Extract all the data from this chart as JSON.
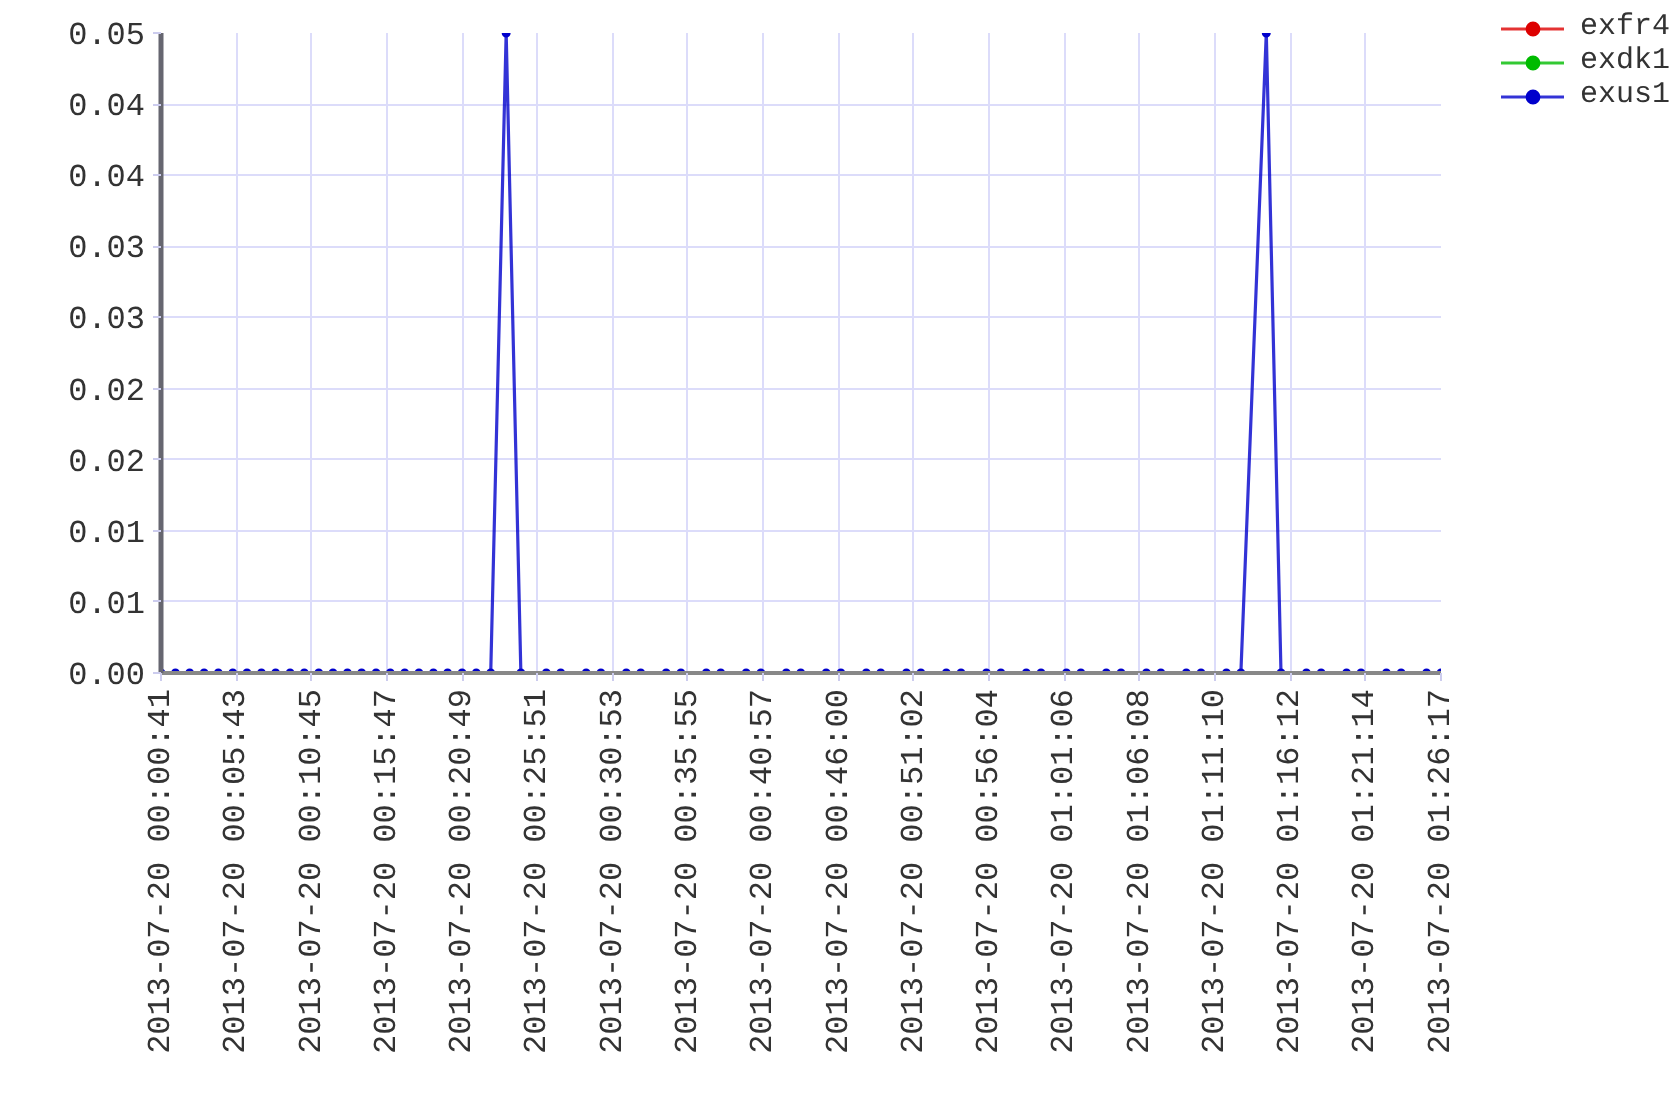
{
  "chart_data": {
    "type": "line",
    "legend": "right",
    "grid": true,
    "marker": "circle",
    "line_style": "solid",
    "xlim": [
      "2013-07-20T00:00:41",
      "2013-07-20T01:26:17"
    ],
    "xticks": [
      {
        "value": "2013-07-20T00:00:41",
        "label": "2013-07-20 00:00:41"
      },
      {
        "value": "2013-07-20T00:05:43",
        "label": "2013-07-20 00:05:43"
      },
      {
        "value": "2013-07-20T00:10:45",
        "label": "2013-07-20 00:10:45"
      },
      {
        "value": "2013-07-20T00:15:47",
        "label": "2013-07-20 00:15:47"
      },
      {
        "value": "2013-07-20T00:20:49",
        "label": "2013-07-20 00:20:49"
      },
      {
        "value": "2013-07-20T00:25:51",
        "label": "2013-07-20 00:25:51"
      },
      {
        "value": "2013-07-20T00:30:53",
        "label": "2013-07-20 00:30:53"
      },
      {
        "value": "2013-07-20T00:35:55",
        "label": "2013-07-20 00:35:55"
      },
      {
        "value": "2013-07-20T00:40:57",
        "label": "2013-07-20 00:40:57"
      },
      {
        "value": "2013-07-20T00:46:00",
        "label": "2013-07-20 00:46:00"
      },
      {
        "value": "2013-07-20T00:51:02",
        "label": "2013-07-20 00:51:02"
      },
      {
        "value": "2013-07-20T00:56:04",
        "label": "2013-07-20 00:56:04"
      },
      {
        "value": "2013-07-20T01:01:06",
        "label": "2013-07-20 01:01:06"
      },
      {
        "value": "2013-07-20T01:06:08",
        "label": "2013-07-20 01:06:08"
      },
      {
        "value": "2013-07-20T01:11:10",
        "label": "2013-07-20 01:11:10"
      },
      {
        "value": "2013-07-20T01:16:12",
        "label": "2013-07-20 01:16:12"
      },
      {
        "value": "2013-07-20T01:21:14",
        "label": "2013-07-20 01:21:14"
      },
      {
        "value": "2013-07-20T01:26:17",
        "label": "2013-07-20 01:26:17"
      }
    ],
    "ylim": [
      0,
      0.05
    ],
    "yticks": [
      {
        "value": 0,
        "label": "0.00"
      },
      {
        "value": 0.00556,
        "label": "0.01"
      },
      {
        "value": 0.01111,
        "label": "0.01"
      },
      {
        "value": 0.01667,
        "label": "0.02"
      },
      {
        "value": 0.02222,
        "label": "0.02"
      },
      {
        "value": 0.02778,
        "label": "0.03"
      },
      {
        "value": 0.03333,
        "label": "0.03"
      },
      {
        "value": 0.03889,
        "label": "0.04"
      },
      {
        "value": 0.04444,
        "label": "0.04"
      },
      0.05
    ],
    "x": [
      "2013-07-20T00:00:41",
      "2013-07-20T00:01:39",
      "2013-07-20T00:02:36",
      "2013-07-20T00:03:34",
      "2013-07-20T00:04:31",
      "2013-07-20T00:05:29",
      "2013-07-20T00:06:26",
      "2013-07-20T00:07:24",
      "2013-07-20T00:08:21",
      "2013-07-20T00:09:19",
      "2013-07-20T00:10:16",
      "2013-07-20T00:11:14",
      "2013-07-20T00:12:11",
      "2013-07-20T00:13:09",
      "2013-07-20T00:14:06",
      "2013-07-20T00:15:04",
      "2013-07-20T00:16:01",
      "2013-07-20T00:16:59",
      "2013-07-20T00:17:56",
      "2013-07-20T00:18:54",
      "2013-07-20T00:19:51",
      "2013-07-20T00:20:49",
      "2013-07-20T00:21:46",
      "2013-07-20T00:22:44",
      "2013-07-20T00:23:46",
      "2013-07-20T00:24:45",
      "2013-07-20T00:26:27",
      "2013-07-20T00:27:25",
      "2013-07-20T00:29:07",
      "2013-07-20T00:30:06",
      "2013-07-20T00:31:48",
      "2013-07-20T00:32:46",
      "2013-07-20T00:34:28",
      "2013-07-20T00:35:27",
      "2013-07-20T00:37:09",
      "2013-07-20T00:38:07",
      "2013-07-20T00:39:49",
      "2013-07-20T00:40:48",
      "2013-07-20T00:42:30",
      "2013-07-20T00:43:28",
      "2013-07-20T00:45:10",
      "2013-07-20T00:46:09",
      "2013-07-20T00:47:51",
      "2013-07-20T00:48:49",
      "2013-07-20T00:50:32",
      "2013-07-20T00:51:30",
      "2013-07-20T00:53:12",
      "2013-07-20T00:54:11",
      "2013-07-20T00:55:53",
      "2013-07-20T00:56:51",
      "2013-07-20T00:58:33",
      "2013-07-20T00:59:32",
      "2013-07-20T01:01:14",
      "2013-07-20T01:02:12",
      "2013-07-20T01:03:54",
      "2013-07-20T01:04:53",
      "2013-07-20T01:06:35",
      "2013-07-20T01:07:33",
      "2013-07-20T01:09:15",
      "2013-07-20T01:10:14",
      "2013-07-20T01:11:56",
      "2013-07-20T01:12:54",
      "2013-07-20T01:14:36",
      "2013-07-20T01:15:35",
      "2013-07-20T01:17:17",
      "2013-07-20T01:18:16",
      "2013-07-20T01:19:58",
      "2013-07-20T01:20:56",
      "2013-07-20T01:22:38",
      "2013-07-20T01:23:37",
      "2013-07-20T01:25:19",
      "2013-07-20T01:26:17"
    ],
    "series": [
      {
        "name": "exfr4",
        "color": "#dd0000",
        "values": [
          null,
          null,
          null,
          null,
          null,
          null,
          null,
          null,
          null,
          null,
          null,
          null,
          null,
          null,
          null,
          null,
          null,
          null,
          null,
          null,
          null,
          null,
          null,
          null,
          null,
          null,
          null,
          null,
          null,
          null,
          null,
          null,
          null,
          null,
          null,
          null,
          null,
          null,
          null,
          null,
          null,
          null,
          null,
          null,
          null,
          null,
          null,
          null,
          null,
          null,
          null,
          null,
          null,
          null,
          null,
          null,
          null,
          null,
          null,
          null,
          null,
          null,
          null,
          null,
          null,
          null,
          null,
          null,
          null,
          null,
          null,
          null
        ]
      },
      {
        "name": "exdk1",
        "color": "#00bb00",
        "values": [
          null,
          null,
          null,
          null,
          null,
          null,
          null,
          null,
          null,
          null,
          null,
          null,
          null,
          null,
          null,
          null,
          null,
          null,
          null,
          null,
          null,
          null,
          null,
          null,
          null,
          null,
          null,
          null,
          null,
          null,
          null,
          null,
          null,
          null,
          null,
          null,
          null,
          null,
          null,
          null,
          null,
          null,
          null,
          null,
          null,
          null,
          null,
          null,
          null,
          null,
          null,
          null,
          null,
          null,
          null,
          null,
          null,
          null,
          null,
          null,
          null,
          null,
          null,
          null,
          null,
          null,
          null,
          null,
          null,
          null,
          null,
          null
        ]
      },
      {
        "name": "exus1",
        "color": "#0000cc",
        "values": [
          0,
          0,
          0,
          0,
          0,
          0,
          0,
          0,
          0,
          0,
          0,
          0,
          0,
          0,
          0,
          0,
          0,
          0,
          0,
          0,
          0,
          0,
          0,
          0,
          0.05,
          0,
          0,
          0,
          0,
          0,
          0,
          0,
          0,
          0,
          0,
          0,
          0,
          0,
          0,
          0,
          0,
          0,
          0,
          0,
          0,
          0,
          0,
          0,
          0,
          0,
          0,
          0,
          0,
          0,
          0,
          0,
          0,
          0,
          0,
          0,
          0,
          0,
          0.05,
          0,
          0,
          0,
          0,
          0,
          0,
          0,
          0,
          0
        ]
      }
    ]
  }
}
